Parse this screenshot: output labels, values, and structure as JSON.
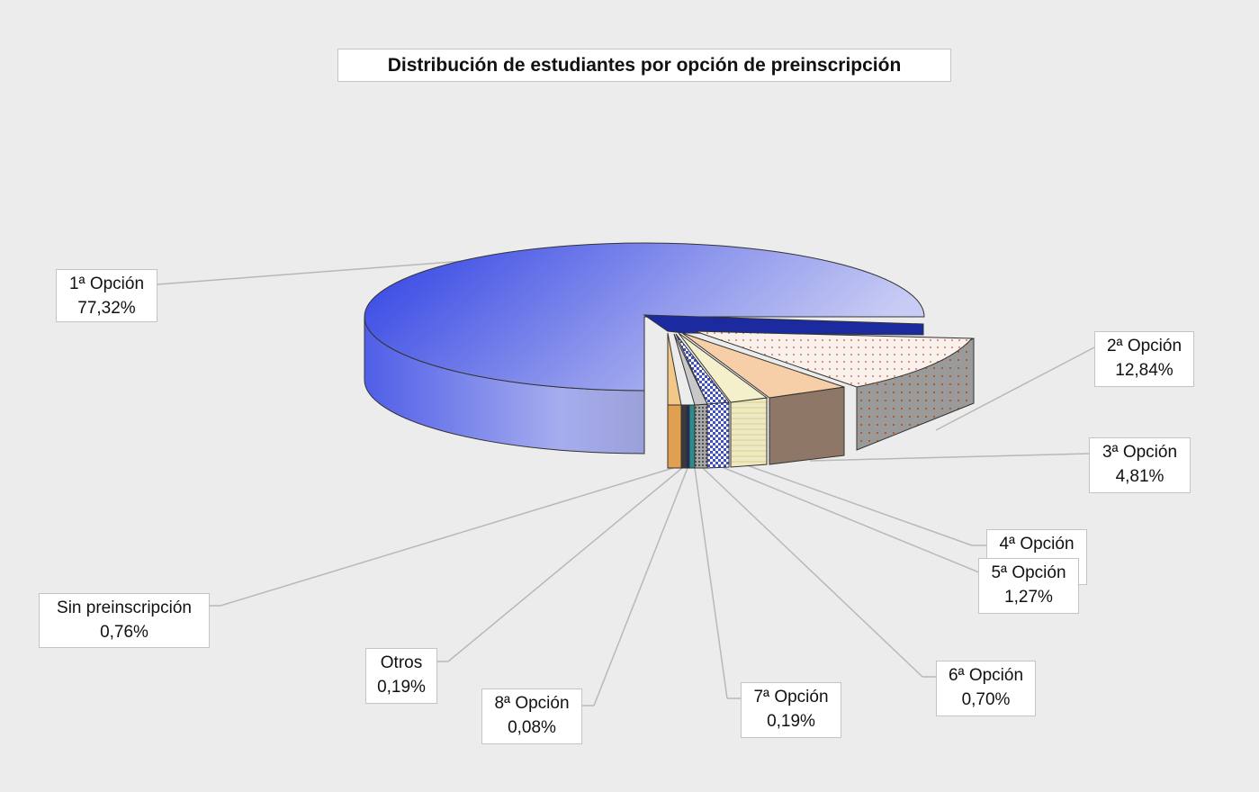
{
  "chart_data": {
    "type": "pie",
    "title": "Distribución de estudiantes por opción de preinscripción",
    "slices": [
      {
        "label": "1ª Opción",
        "value": 77.32,
        "display": "77,32%",
        "color": "#5566e0"
      },
      {
        "label": "2ª Opción",
        "value": 12.84,
        "display": "12,84%",
        "color": "#9a9a9a"
      },
      {
        "label": "3ª Opción",
        "value": 4.81,
        "display": "4,81%",
        "color": "#8e7766"
      },
      {
        "label": "4ª Opción",
        "value": 2.0,
        "display": "",
        "color": "#e8e3b8"
      },
      {
        "label": "5ª Opción",
        "value": 1.27,
        "display": "1,27%",
        "color": "#4f57b8"
      },
      {
        "label": "6ª Opción",
        "value": 0.7,
        "display": "0,70%",
        "color": "#9a9a9a"
      },
      {
        "label": "7ª Opción",
        "value": 0.19,
        "display": "0,19%",
        "color": "#2c8c8c"
      },
      {
        "label": "8ª Opción",
        "value": 0.08,
        "display": "0,08%",
        "color": "#1a2a6a"
      },
      {
        "label": "Otros",
        "value": 0.19,
        "display": "0,19%",
        "color": "#3a3a3a"
      },
      {
        "label": "Sin preinscripción",
        "value": 0.76,
        "display": "0,76%",
        "color": "#e0a050"
      }
    ]
  }
}
